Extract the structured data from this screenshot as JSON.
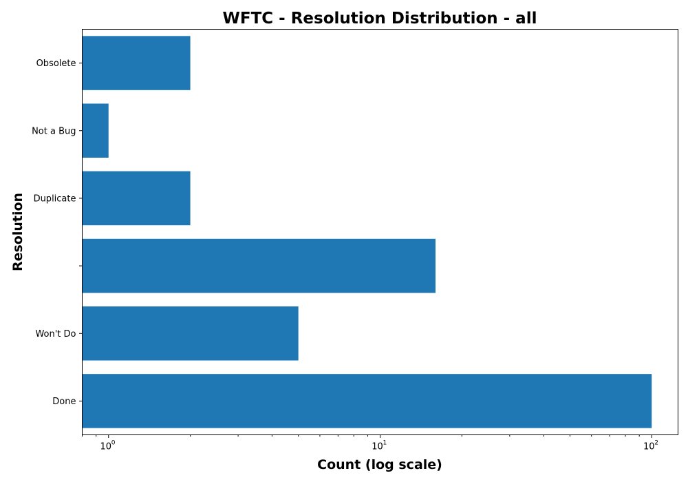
{
  "chart_data": {
    "type": "bar",
    "orientation": "horizontal",
    "title": "WFTC - Resolution Distribution - all",
    "xlabel": "Count (log scale)",
    "ylabel": "Resolution",
    "xscale": "log",
    "xlim": [
      0.8,
      125
    ],
    "xticks": [
      {
        "value": 1,
        "base": "10",
        "exp": "0"
      },
      {
        "value": 10,
        "base": "10",
        "exp": "1"
      },
      {
        "value": 100,
        "base": "10",
        "exp": "2"
      }
    ],
    "categories": [
      "Done",
      "Won't Do",
      "",
      "Duplicate",
      "Not a Bug",
      "Obsolete"
    ],
    "values": [
      100,
      5,
      16,
      2,
      1,
      2
    ],
    "bar_color": "#1f77b4",
    "grid": false,
    "legend": "none"
  }
}
